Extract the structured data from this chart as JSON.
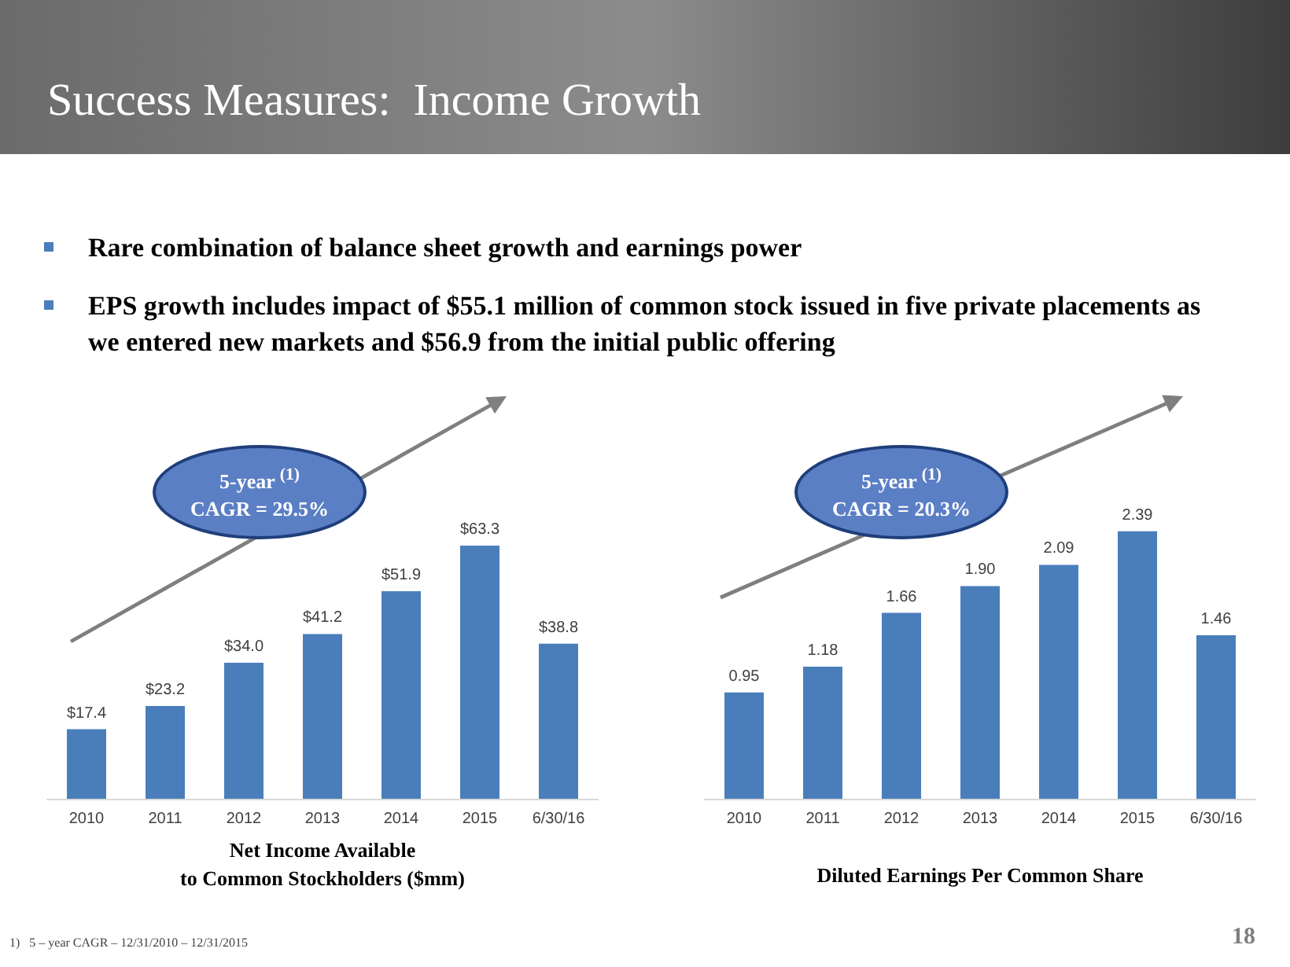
{
  "chart_data": [
    {
      "type": "bar",
      "title": "Success Measures:  Income Growth",
      "categories": [
        "2010",
        "2011",
        "2012",
        "2013",
        "2014",
        "2015",
        "6/30/16"
      ],
      "values": [
        17.4,
        23.2,
        34.0,
        41.2,
        51.9,
        63.3,
        38.8
      ],
      "value_labels": [
        "$17.4",
        "$23.2",
        "$34.0",
        "$41.2",
        "$51.9",
        "$63.3",
        "$38.8"
      ],
      "color": "#4a7ebb",
      "xlabel": "Net Income Available\nto Common Stockholders ($mm)",
      "annotations": [
        "Rare combination of balance sheet growth and earnings power",
        "EPS growth includes impact of $55.1 million of common stock issued in five private placements as we entered new markets and $56.9 from the initial public offering",
        "5-year $^{(1)}$\nCAGR = 29.5%"
      ]
    },
    {
      "type": "bar",
      "categories": [
        "2010",
        "2011",
        "2012",
        "2013",
        "2014",
        "2015",
        "6/30/16"
      ],
      "values": [
        0.95,
        1.18,
        1.66,
        1.9,
        2.09,
        2.39,
        1.46
      ],
      "value_labels": [
        "0.95",
        "1.18",
        "1.66",
        "1.90",
        "2.09",
        "2.39",
        "1.46"
      ],
      "color": "#4a7ebb",
      "xlabel": "Diluted Earnings Per Common Share",
      "annotations": [
        "5-year $^{(1)}$\nCAGR = 20.3%",
        "1)   5 – year CAGR – 12/31/2010 – 12/31/2015",
        "18"
      ]
    }
  ]
}
